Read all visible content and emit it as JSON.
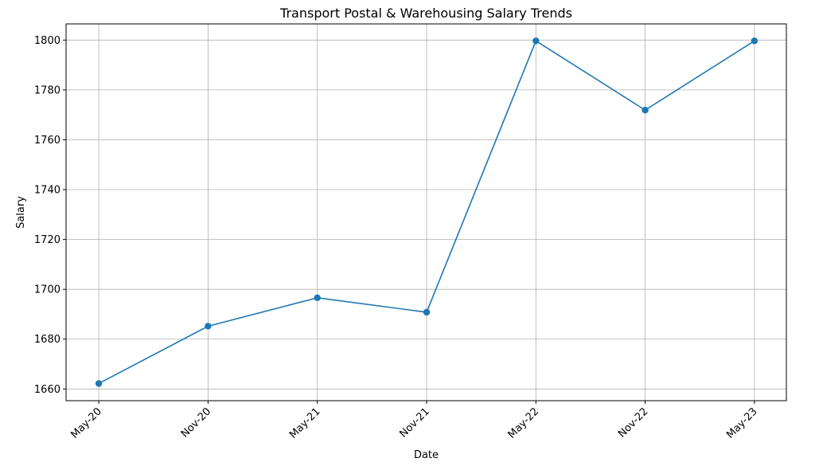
{
  "chart_data": {
    "type": "line",
    "title": "Transport Postal & Warehousing Salary Trends",
    "xlabel": "Date",
    "ylabel": "Salary",
    "categories": [
      "May-20",
      "Nov-20",
      "May-21",
      "Nov-21",
      "May-22",
      "Nov-22",
      "May-23"
    ],
    "series": [
      {
        "values": [
          1662.2,
          1685.2,
          1696.6,
          1690.8,
          1799.7,
          1771.9,
          1799.7
        ],
        "color": "#1f77b4"
      }
    ],
    "ylim": [
      1655.3,
      1806.5
    ],
    "yticks": [
      1660,
      1680,
      1700,
      1720,
      1740,
      1760,
      1780,
      1800
    ],
    "grid": true,
    "legend": "none",
    "marker": "circle"
  }
}
